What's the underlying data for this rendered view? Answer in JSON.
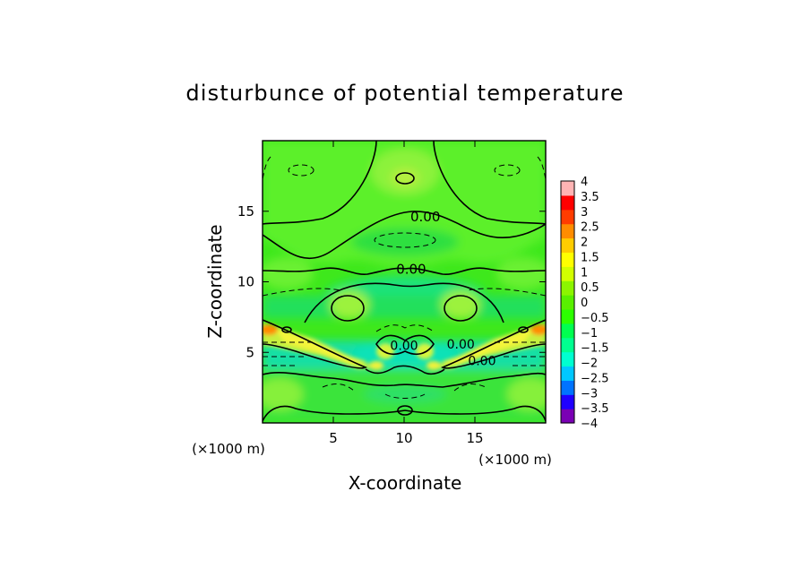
{
  "chart_data": {
    "type": "heatmap",
    "title": "disturbunce of potential temperature",
    "xlabel": "X-coordinate",
    "ylabel": "Z-coordinate",
    "x_unit": "(×1000 m)",
    "z_unit": "(×1000 m)",
    "xlim": [
      0,
      20
    ],
    "ylim": [
      0,
      20
    ],
    "x_ticks": [
      5,
      10,
      15
    ],
    "x_tick_labels": [
      "5",
      "10",
      "15"
    ],
    "y_ticks": [
      5,
      10,
      15
    ],
    "y_tick_labels": [
      "5",
      "10",
      "15"
    ],
    "contour_labels": [
      {
        "text": "0.00",
        "x": 11.5,
        "z": 14.6
      },
      {
        "text": "0.00",
        "x": 10.5,
        "z": 10.9
      },
      {
        "text": "0.00",
        "x": 10.0,
        "z": 5.5
      },
      {
        "text": "0.00",
        "x": 14.0,
        "z": 5.6
      },
      {
        "text": "0.00",
        "x": 15.5,
        "z": 4.4
      }
    ],
    "colorbar": {
      "min": -4,
      "max": 4,
      "tick_values": [
        4,
        3.5,
        3,
        2.5,
        2,
        1.5,
        1,
        0.5,
        0,
        -0.5,
        -1,
        -1.5,
        -2,
        -2.5,
        -3,
        -3.5,
        -4
      ],
      "tick_labels": [
        "4",
        "3.5",
        "3",
        "2.5",
        "2",
        "1.5",
        "1",
        "0.5",
        "0",
        "−0.5",
        "−1",
        "−1.5",
        "−2",
        "−2.5",
        "−3",
        "−3.5",
        "−4"
      ],
      "colors": [
        "#7a00b4",
        "#1f00ff",
        "#0073ff",
        "#00c8ff",
        "#00ffd0",
        "#00ff90",
        "#00ff50",
        "#2cff00",
        "#59f000",
        "#8cf500",
        "#d2ff00",
        "#ffff00",
        "#ffcc00",
        "#ff8c00",
        "#ff3c00",
        "#ff0000",
        "#ffb4b4"
      ]
    }
  }
}
